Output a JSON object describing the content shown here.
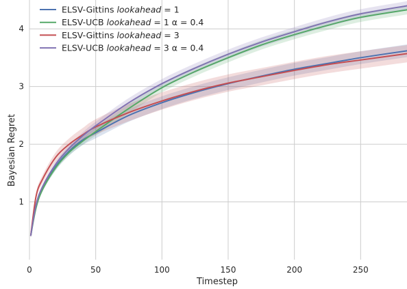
{
  "chart_data": {
    "type": "line",
    "xlabel": "Timestep",
    "ylabel": "Bayesian Regret",
    "xlim": [
      0,
      285
    ],
    "ylim": [
      0,
      4.5
    ],
    "x_ticks": [
      "0",
      "50",
      "100",
      "150",
      "200",
      "250"
    ],
    "y_ticks": [
      "1",
      "2",
      "3",
      "4"
    ],
    "grid": true,
    "legend_position": "top-left",
    "x": [
      1,
      5,
      10,
      20,
      30,
      40,
      50,
      75,
      100,
      125,
      150,
      175,
      200,
      225,
      250,
      285
    ],
    "series": [
      {
        "name": "ELSV-Gittins",
        "name_italic": "lookahead",
        "name_suffix": " = 1",
        "color": "#4c72b0",
        "values": [
          0.42,
          0.95,
          1.25,
          1.62,
          1.88,
          2.07,
          2.2,
          2.5,
          2.72,
          2.9,
          3.05,
          3.18,
          3.3,
          3.4,
          3.5,
          3.62
        ],
        "band": 0.11
      },
      {
        "name": "ELSV-UCB",
        "name_italic": "lookahead",
        "name_suffix": " = 1 α = 0.4",
        "color": "#55a868",
        "values": [
          0.42,
          0.9,
          1.22,
          1.6,
          1.86,
          2.05,
          2.22,
          2.62,
          2.98,
          3.26,
          3.5,
          3.72,
          3.9,
          4.06,
          4.2,
          4.33
        ],
        "band": 0.08
      },
      {
        "name": "ELSV-Gittins",
        "name_italic": "lookahead",
        "name_suffix": " = 3",
        "color": "#c44e52",
        "values": [
          0.42,
          1.1,
          1.4,
          1.78,
          2.0,
          2.16,
          2.3,
          2.55,
          2.75,
          2.92,
          3.06,
          3.17,
          3.28,
          3.38,
          3.46,
          3.57
        ],
        "band": 0.15
      },
      {
        "name": "ELSV-UCB",
        "name_italic": "lookahead",
        "name_suffix": " = 3 α = 0.4",
        "color": "#8172b2",
        "values": [
          0.42,
          0.95,
          1.27,
          1.66,
          1.93,
          2.14,
          2.32,
          2.72,
          3.05,
          3.32,
          3.56,
          3.77,
          3.95,
          4.12,
          4.26,
          4.4
        ],
        "band": 0.08
      }
    ]
  }
}
